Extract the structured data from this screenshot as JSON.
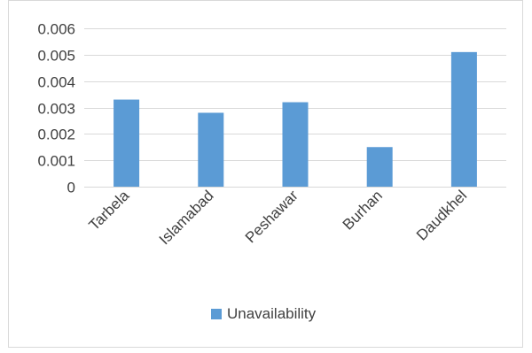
{
  "chart_data": {
    "type": "bar",
    "categories": [
      "Tarbela",
      "Islamabad",
      "Peshawar",
      "Burhan",
      "Daudkhel"
    ],
    "series": [
      {
        "name": "Unavailability",
        "values": [
          0.0033,
          0.0028,
          0.0032,
          0.0015,
          0.0051
        ]
      }
    ],
    "y_ticks": [
      "0",
      "0.001",
      "0.002",
      "0.003",
      "0.004",
      "0.005",
      "0.006"
    ],
    "ylim": [
      0,
      0.006
    ],
    "grid": true,
    "legend_position": "bottom",
    "colors": {
      "bar": "#5b9bd5",
      "grid": "#d9d9d9",
      "text": "#404040",
      "border": "#d9d9d9"
    }
  }
}
